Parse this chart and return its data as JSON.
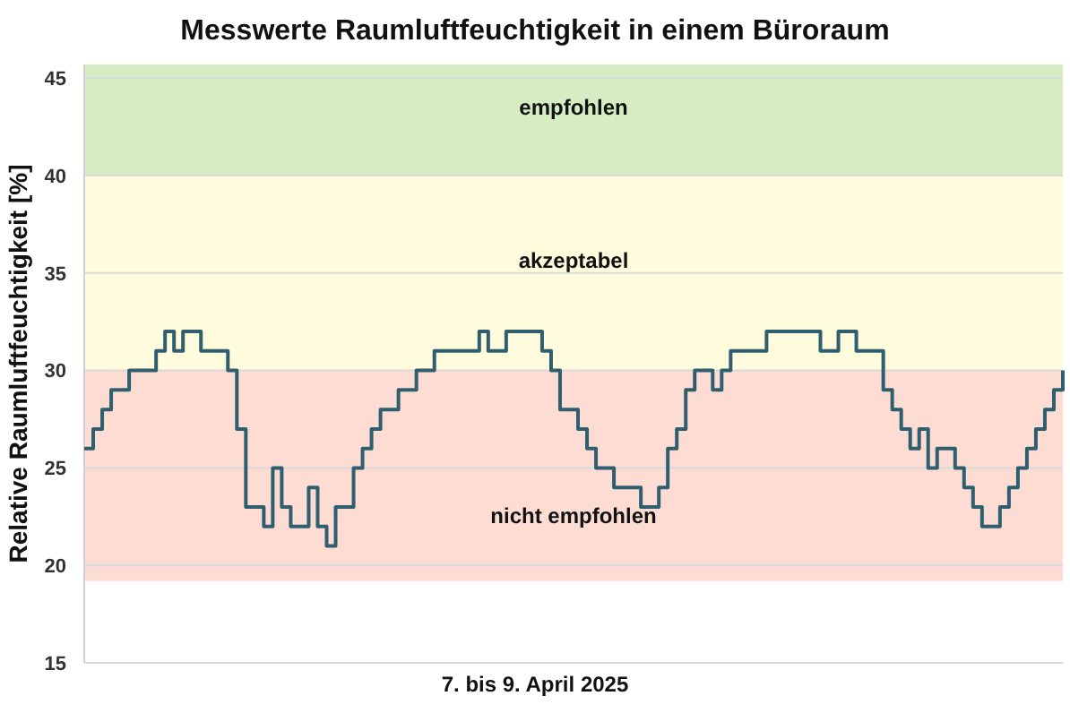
{
  "chart_data": {
    "type": "step",
    "title": "Messwerte Raumluftfeuchtigkeit in einem Büroraum",
    "xlabel": "7. bis 9. April 2025",
    "ylabel": "Relative Raumluftfeuchtigkeit [%]",
    "categories": [
      null,
      null,
      null,
      null,
      null,
      null,
      null,
      null,
      null,
      null,
      null,
      null,
      null,
      null,
      null,
      null,
      null,
      null,
      null,
      null,
      null,
      null,
      null,
      null,
      null,
      null,
      null,
      null,
      null,
      null,
      null,
      null,
      null,
      null,
      null,
      null,
      null,
      null,
      null,
      null,
      null,
      null,
      null,
      null,
      null,
      null,
      null,
      null,
      null,
      null,
      null,
      null,
      null,
      null,
      null,
      null,
      null,
      null,
      null,
      null,
      null,
      null,
      null,
      null,
      null,
      null,
      null,
      null,
      null,
      null,
      null,
      null,
      null,
      null,
      null,
      null,
      null,
      null,
      null,
      null,
      null,
      null,
      null,
      null,
      null,
      null,
      null,
      null,
      null,
      null,
      null,
      null,
      null,
      null,
      null,
      null,
      null,
      null,
      null,
      null,
      null,
      null,
      null,
      null,
      null,
      null,
      null,
      null,
      null,
      null
    ],
    "series": [
      {
        "color": "#2f5f6e",
        "values": [
          26,
          27,
          28,
          29,
          29,
          30,
          30,
          30,
          31,
          32,
          31,
          32,
          32,
          31,
          31,
          31,
          30,
          27,
          23,
          23,
          22,
          25,
          23,
          22,
          22,
          24,
          22,
          21,
          23,
          23,
          25,
          26,
          27,
          28,
          28,
          29,
          29,
          30,
          30,
          31,
          31,
          31,
          31,
          31,
          32,
          31,
          31,
          32,
          32,
          32,
          32,
          31,
          30,
          28,
          28,
          27,
          26,
          25,
          25,
          24,
          24,
          24,
          23,
          23,
          24,
          26,
          27,
          29,
          30,
          30,
          29,
          30,
          31,
          31,
          31,
          31,
          32,
          32,
          32,
          32,
          32,
          32,
          31,
          31,
          32,
          32,
          31,
          31,
          31,
          29,
          28,
          27,
          26,
          27,
          25,
          26,
          26,
          25,
          24,
          23,
          22,
          22,
          23,
          24,
          25,
          26,
          27,
          28,
          29,
          30
        ]
      }
    ],
    "ylim": [
      15,
      45.7
    ],
    "yticks": [
      15,
      20,
      25,
      30,
      35,
      40,
      45
    ],
    "grid": "y",
    "tick_labels": "y",
    "marker": "none",
    "line_style": "solid",
    "bands": [
      {
        "axis": "y",
        "from": 19.2,
        "to": 30,
        "label": "nicht empfohlen",
        "color": "#fddcd3"
      },
      {
        "axis": "y",
        "from": 30,
        "to": 40,
        "label": "akzeptabel",
        "color": "#fefcdc"
      },
      {
        "axis": "y",
        "from": 40,
        "to": 45.7,
        "label": "empfohlen",
        "color": "#d6ecc3"
      }
    ]
  }
}
